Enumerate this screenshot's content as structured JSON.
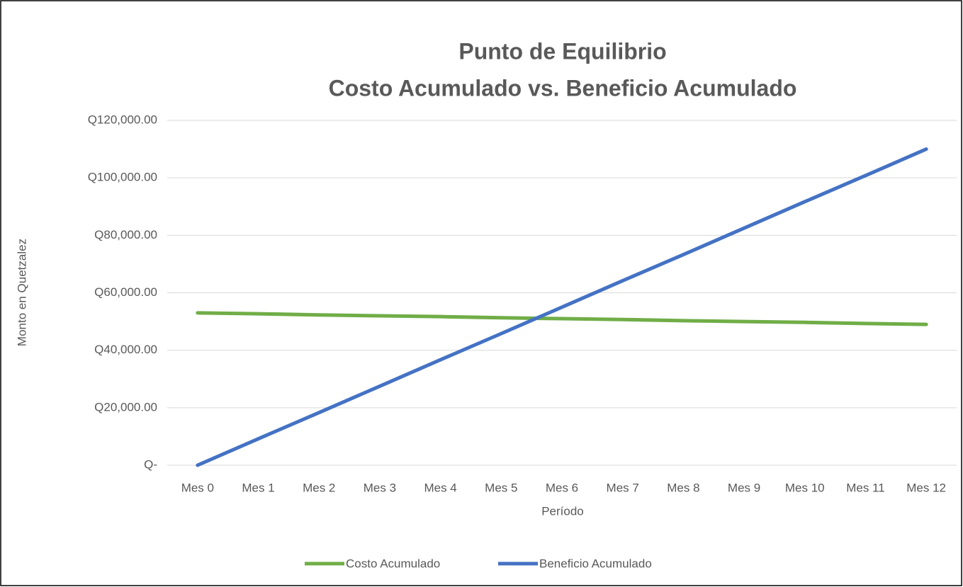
{
  "chart_data": {
    "type": "line",
    "title": "Punto de Equilibrio",
    "subtitle": "Costo Acumulado vs. Beneficio Acumulado",
    "x_label": "Período",
    "y_label": "Monto en Quetzalez",
    "categories": [
      "Mes 0",
      "Mes 1",
      "Mes 2",
      "Mes 3",
      "Mes 4",
      "Mes 5",
      "Mes 6",
      "Mes 7",
      "Mes 8",
      "Mes 9",
      "Mes 10",
      "Mes 11",
      "Mes 12"
    ],
    "series": [
      {
        "name": "Costo Acumulado",
        "color": "#70ad47",
        "values": [
          53000,
          52700,
          52300,
          52000,
          51700,
          51300,
          51000,
          50700,
          50300,
          50000,
          49700,
          49300,
          49000
        ]
      },
      {
        "name": "Beneficio Acumulado",
        "color": "#4472c4",
        "values": [
          0,
          9200,
          18300,
          27500,
          36700,
          45800,
          55000,
          64200,
          73300,
          82500,
          91700,
          100800,
          110000
        ]
      }
    ],
    "ylim": [
      0,
      120000
    ],
    "yticks": [
      {
        "value": 0,
        "label": "Q-"
      },
      {
        "value": 20000,
        "label": "Q20,000.00"
      },
      {
        "value": 40000,
        "label": "Q40,000.00"
      },
      {
        "value": 60000,
        "label": "Q60,000.00"
      },
      {
        "value": 80000,
        "label": "Q80,000.00"
      },
      {
        "value": 100000,
        "label": "Q100,000.00"
      },
      {
        "value": 120000,
        "label": "Q120,000.00"
      }
    ],
    "grid": true,
    "legend": "bottom"
  }
}
